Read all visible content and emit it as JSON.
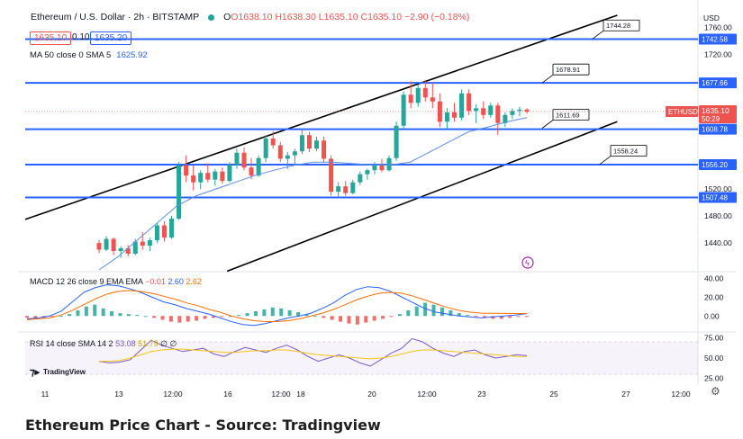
{
  "header": {
    "symbol": "Ethereum / U.S. Dollar · 2h · BITSTAMP",
    "open": "O1638.10",
    "high": "H1638.30",
    "low": "L1635.10",
    "close": "C1635.10",
    "change": "−2.90 (−0.18%)",
    "sell_price": "1635.10",
    "spread": "0.10",
    "buy_price": "1635.20",
    "ma_label": "MA 50 close 0 SMA 5",
    "ma_value": "1625.92",
    "currency": "USD"
  },
  "macd_label": {
    "name": "MACD 12 26 close 9 EMA EMA",
    "hist": "−0.01",
    "macd": "2.60",
    "signal": "2.62"
  },
  "rsi_label": {
    "name": "RSI 14 close SMA 14 2",
    "rsi": "53.08",
    "sma": "51.79",
    "extra": "∅ ∅"
  },
  "caption": "Ethereum Price Chart - Source: Tradingview",
  "logo_text": "TradingView",
  "colors": {
    "up": "#26a69a",
    "down": "#ef5350",
    "level_line": "#2962ff",
    "ma_line": "#5b8fe6",
    "macd_line": "#2962ff",
    "signal_line": "#ff6d00",
    "rsi_line": "#7e57c2",
    "rsi_sma": "#f5c518"
  },
  "chart_data": {
    "type": "candlestick",
    "symbol_tag": "ETHUSD",
    "last_price": "1635.10",
    "countdown": "50:29",
    "price_axis_ticks": [
      "1760.00",
      "1720.00",
      "1520.00",
      "1480.00",
      "1440.00"
    ],
    "price_range": [
      1400,
      1790
    ],
    "x_ticks": [
      "11",
      "13",
      "12:00",
      "16",
      "12:00",
      "18",
      "20",
      "12:00",
      "23",
      "25",
      "27",
      "12:00"
    ],
    "horizontal_levels": [
      {
        "value": 1742.58,
        "label": "1742.58"
      },
      {
        "value": 1677.66,
        "label": "1677.66"
      },
      {
        "value": 1608.78,
        "label": "1608.78"
      },
      {
        "value": 1556.2,
        "label": "1556.20"
      },
      {
        "value": 1507.48,
        "label": "1507.48"
      }
    ],
    "callouts": [
      "1744.28",
      "1678.91",
      "1611.69",
      "1558.24"
    ],
    "channel": {
      "upper": [
        [
          0,
          1475
        ],
        [
          0.88,
          1778
        ]
      ],
      "lower": [
        [
          0.3,
          1398
        ],
        [
          0.88,
          1620
        ]
      ]
    },
    "candles": [
      [
        1440,
        1444,
        1425,
        1430
      ],
      [
        1430,
        1450,
        1428,
        1446
      ],
      [
        1446,
        1448,
        1422,
        1428
      ],
      [
        1428,
        1435,
        1418,
        1432
      ],
      [
        1432,
        1437,
        1420,
        1424
      ],
      [
        1424,
        1446,
        1422,
        1442
      ],
      [
        1442,
        1456,
        1430,
        1436
      ],
      [
        1436,
        1448,
        1428,
        1444
      ],
      [
        1444,
        1470,
        1440,
        1466
      ],
      [
        1466,
        1472,
        1442,
        1448
      ],
      [
        1448,
        1480,
        1446,
        1476
      ],
      [
        1476,
        1560,
        1474,
        1555
      ],
      [
        1555,
        1570,
        1530,
        1540
      ],
      [
        1540,
        1555,
        1518,
        1530
      ],
      [
        1530,
        1548,
        1520,
        1544
      ],
      [
        1544,
        1558,
        1530,
        1534
      ],
      [
        1534,
        1550,
        1525,
        1546
      ],
      [
        1546,
        1552,
        1528,
        1532
      ],
      [
        1532,
        1560,
        1530,
        1556
      ],
      [
        1556,
        1580,
        1550,
        1574
      ],
      [
        1574,
        1582,
        1548,
        1552
      ],
      [
        1552,
        1566,
        1535,
        1540
      ],
      [
        1540,
        1570,
        1538,
        1566
      ],
      [
        1566,
        1600,
        1560,
        1595
      ],
      [
        1595,
        1606,
        1580,
        1585
      ],
      [
        1585,
        1590,
        1560,
        1565
      ],
      [
        1565,
        1575,
        1550,
        1570
      ],
      [
        1570,
        1580,
        1555,
        1576
      ],
      [
        1576,
        1608,
        1572,
        1600
      ],
      [
        1600,
        1605,
        1575,
        1580
      ],
      [
        1580,
        1598,
        1576,
        1592
      ],
      [
        1592,
        1598,
        1560,
        1565
      ],
      [
        1565,
        1570,
        1510,
        1516
      ],
      [
        1516,
        1530,
        1508,
        1524
      ],
      [
        1524,
        1532,
        1510,
        1514
      ],
      [
        1514,
        1534,
        1512,
        1530
      ],
      [
        1530,
        1546,
        1526,
        1542
      ],
      [
        1542,
        1550,
        1534,
        1548
      ],
      [
        1548,
        1560,
        1542,
        1555
      ],
      [
        1555,
        1565,
        1545,
        1548
      ],
      [
        1548,
        1570,
        1546,
        1566
      ],
      [
        1566,
        1620,
        1562,
        1614
      ],
      [
        1614,
        1665,
        1610,
        1660
      ],
      [
        1660,
        1680,
        1640,
        1648
      ],
      [
        1648,
        1675,
        1642,
        1670
      ],
      [
        1670,
        1682,
        1650,
        1656
      ],
      [
        1656,
        1678,
        1640,
        1650
      ],
      [
        1650,
        1662,
        1612,
        1620
      ],
      [
        1620,
        1640,
        1610,
        1634
      ],
      [
        1634,
        1648,
        1620,
        1626
      ],
      [
        1626,
        1668,
        1622,
        1662
      ],
      [
        1662,
        1668,
        1630,
        1636
      ],
      [
        1636,
        1646,
        1618,
        1640
      ],
      [
        1640,
        1650,
        1624,
        1630
      ],
      [
        1630,
        1648,
        1626,
        1644
      ],
      [
        1644,
        1648,
        1600,
        1618
      ],
      [
        1618,
        1634,
        1612,
        1630
      ],
      [
        1630,
        1640,
        1624,
        1636
      ],
      [
        1636,
        1642,
        1628,
        1638
      ],
      [
        1638,
        1640,
        1632,
        1635
      ]
    ],
    "ma50": [
      1400,
      1420,
      1445,
      1470,
      1495,
      1510,
      1520,
      1530,
      1540,
      1548,
      1555,
      1560,
      1560,
      1558,
      1556,
      1556,
      1560,
      1575,
      1590,
      1605,
      1612,
      1620,
      1626
    ],
    "macd": {
      "axis_ticks": [
        "40.00",
        "20.00",
        "0.00"
      ],
      "range": [
        -15,
        45
      ],
      "hist": [
        -2,
        -3,
        -2,
        -1,
        0,
        2,
        6,
        10,
        12,
        8,
        5,
        3,
        2,
        1,
        0,
        -2,
        -4,
        -6,
        -7,
        -6,
        -5,
        -3,
        -2,
        -1,
        0,
        1,
        3,
        5,
        7,
        9,
        8,
        6,
        4,
        2,
        0,
        -2,
        -4,
        -6,
        -8,
        -9,
        -7,
        -5,
        -3,
        -1,
        2,
        6,
        10,
        14,
        12,
        9,
        6,
        3,
        1,
        -1,
        -2,
        -3,
        -3,
        -2,
        -1,
        -0.01
      ],
      "macd_line": [
        -3,
        -2,
        0,
        5,
        15,
        25,
        30,
        33,
        32,
        29,
        25,
        20,
        15,
        12,
        8,
        5,
        2,
        -2,
        -6,
        -9,
        -10,
        -8,
        -5,
        -2,
        0,
        3,
        8,
        14,
        22,
        28,
        31,
        30,
        26,
        20,
        14,
        8,
        4,
        2,
        0,
        -1,
        -2,
        -1,
        0,
        1,
        2.6
      ],
      "signal_line": [
        -4,
        -3,
        -2,
        1,
        6,
        12,
        18,
        23,
        26,
        27,
        26,
        24,
        21,
        18,
        14,
        11,
        7,
        4,
        0,
        -3,
        -5,
        -6,
        -6,
        -5,
        -3,
        0,
        3,
        7,
        12,
        17,
        21,
        24,
        25,
        24,
        21,
        17,
        13,
        9,
        6,
        4,
        3,
        2.8,
        2.7,
        2.6,
        2.62
      ]
    },
    "rsi": {
      "axis_ticks": [
        "75.00",
        "50.00",
        "25.00"
      ],
      "range": [
        20,
        80
      ],
      "values": [
        46,
        44,
        45,
        48,
        60,
        72,
        66,
        62,
        58,
        60,
        62,
        55,
        52,
        58,
        63,
        60,
        57,
        62,
        66,
        60,
        52,
        46,
        50,
        54,
        50,
        44,
        40,
        48,
        56,
        62,
        74,
        70,
        62,
        56,
        52,
        58,
        60,
        54,
        50,
        52,
        54,
        53.08
      ],
      "sma": [
        46,
        46,
        47,
        50,
        54,
        58,
        60,
        61,
        61,
        60,
        59,
        58,
        57,
        57,
        58,
        59,
        59,
        60,
        60,
        58,
        56,
        54,
        53,
        52,
        51,
        50,
        49,
        50,
        52,
        55,
        58,
        60,
        60,
        59,
        58,
        57,
        56,
        55,
        54,
        53,
        52,
        51.79
      ]
    }
  }
}
